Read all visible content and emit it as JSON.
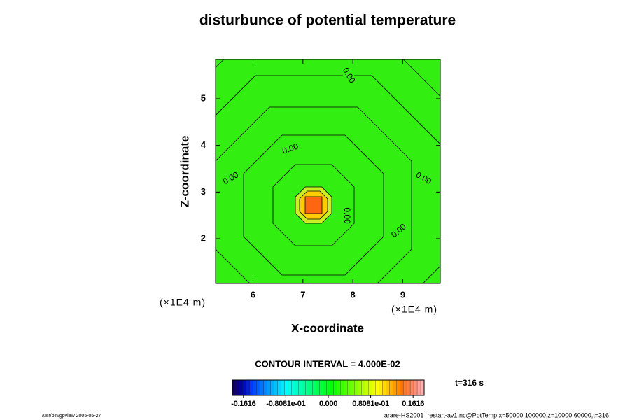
{
  "chart_data": {
    "type": "contour",
    "title": "disturbunce of potential temperature",
    "x_label": "X-coordinate",
    "y_label": "Z-coordinate",
    "x_unit": "(×1E4 m)",
    "y_unit": "(×1E4 m)",
    "xlim": [
      5.25,
      9.75
    ],
    "xticks": [
      6,
      7,
      8,
      9
    ],
    "ylim": [
      1.04,
      5.84
    ],
    "yticks": [
      2,
      3,
      4,
      5
    ],
    "contour_labels": [
      "0.00",
      "0.00",
      "0.00",
      "0.00",
      "0.00",
      "0.00"
    ],
    "contour_interval": "CONTOUR INTERVAL = 4.000E-02",
    "colorbar": {
      "lim": [
        -0.1827,
        0.1827
      ],
      "ticks": [
        {
          "value": -0.1616,
          "label": "-0.1616"
        },
        {
          "value": -0.08081,
          "label": "-0.8081e-01"
        },
        {
          "value": 0,
          "label": "0.000"
        },
        {
          "value": 0.08081,
          "label": "0.8081e-01"
        },
        {
          "value": 0.1616,
          "label": "0.1616"
        }
      ]
    },
    "time_label": "t=316 s",
    "footer_left": "/usr/bin/gpview 2005-05-27",
    "footer_right": "arare-HS2001_restart-av1.nc@PotTemp,x=50000:100000,z=10000:60000,t=316"
  }
}
